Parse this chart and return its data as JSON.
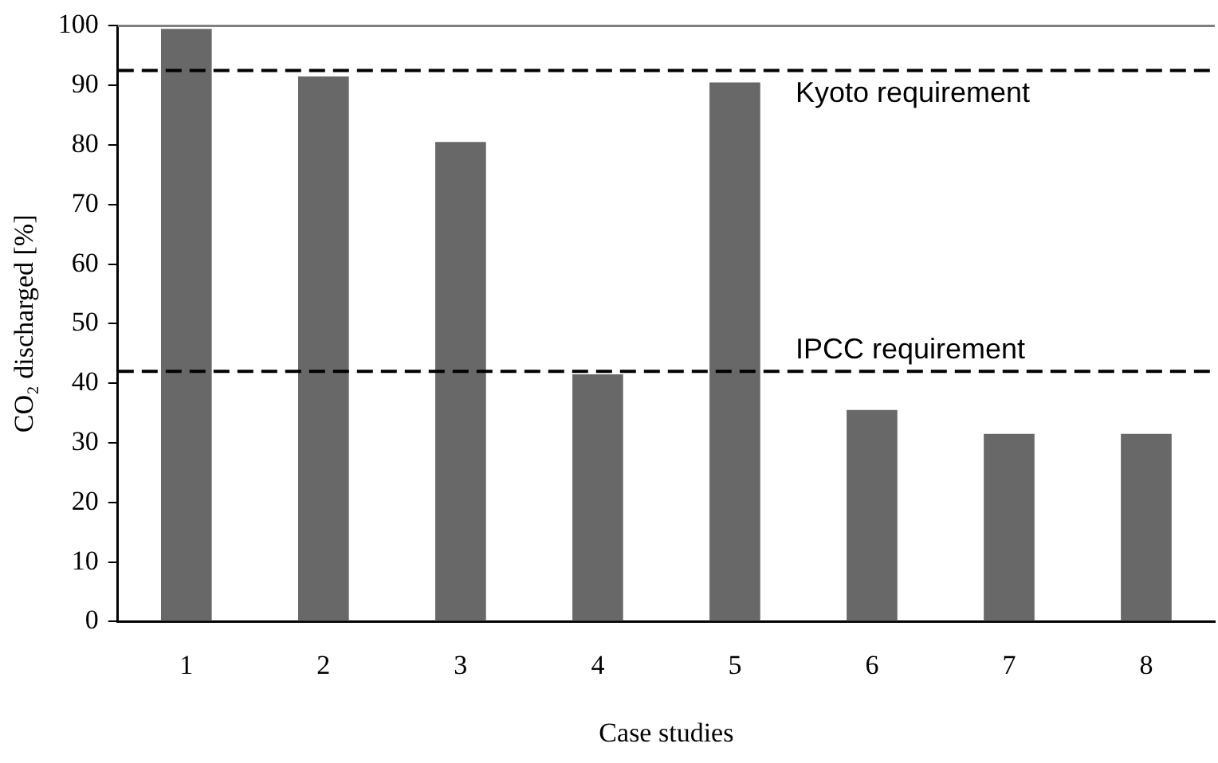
{
  "chart_data": {
    "type": "bar",
    "xlabel": "Case studies",
    "ylabel": "CO₂ discharged [%]",
    "categories": [
      "1",
      "2",
      "3",
      "4",
      "5",
      "6",
      "7",
      "8"
    ],
    "values": [
      99.5,
      91.5,
      80.5,
      41.5,
      90.5,
      35.5,
      31.5,
      31.5
    ],
    "color": "#686868",
    "ylim": [
      0,
      100
    ],
    "yticks": [
      0,
      10,
      20,
      30,
      40,
      50,
      60,
      70,
      80,
      90,
      100
    ],
    "grid": false,
    "legend": false,
    "ref_lines": [
      {
        "axis": "y",
        "value": 92.5,
        "label": "Kyoto requirement",
        "line_style": "dashed",
        "color": "#000000"
      },
      {
        "axis": "y",
        "value": 42,
        "label": "IPCC requirement",
        "line_style": "dashed",
        "color": "#000000"
      }
    ]
  }
}
